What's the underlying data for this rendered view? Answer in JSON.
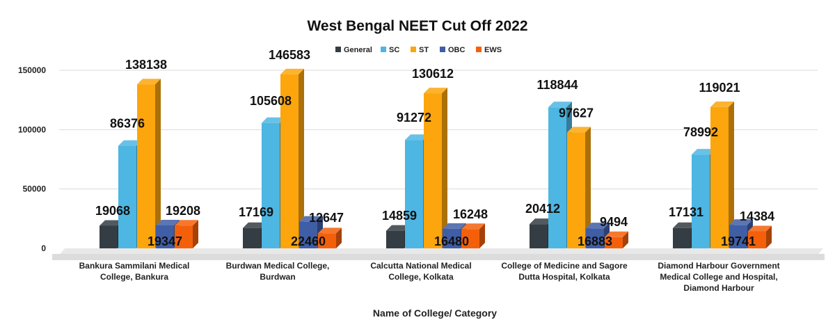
{
  "chart_data": {
    "type": "bar",
    "title": "West Bengal NEET Cut Off 2022",
    "xlabel": "Name of College/ Category",
    "ylabel": "",
    "ylim": [
      0,
      150000
    ],
    "yticks": [
      0,
      50000,
      100000,
      150000
    ],
    "legend_position": "top",
    "grid": true,
    "categories": [
      [
        "Bankura Sammilani Medical",
        "College, Bankura"
      ],
      [
        "Burdwan Medical College,",
        "Burdwan"
      ],
      [
        "Calcutta National Medical",
        "College, Kolkata"
      ],
      [
        "College of Medicine and Sagore",
        "Dutta Hospital, Kolkata"
      ],
      [
        "Diamond Harbour Government",
        "Medical College and Hospital,",
        "Diamond Harbour"
      ]
    ],
    "series": [
      {
        "name": "General",
        "color": "#343d43",
        "values": [
          19068,
          17169,
          14859,
          20412,
          17131
        ]
      },
      {
        "name": "SC",
        "color": "#4db6e2",
        "values": [
          86376,
          105608,
          91272,
          118844,
          78992
        ]
      },
      {
        "name": "ST",
        "color": "#fca50c",
        "values": [
          138138,
          146583,
          130612,
          97627,
          119021
        ]
      },
      {
        "name": "OBC",
        "color": "#3f5ea6",
        "values": [
          19347,
          22460,
          16480,
          16883,
          19741
        ]
      },
      {
        "name": "EWS",
        "color": "#f4600a",
        "values": [
          19208,
          12647,
          16248,
          9494,
          14384
        ]
      }
    ]
  }
}
